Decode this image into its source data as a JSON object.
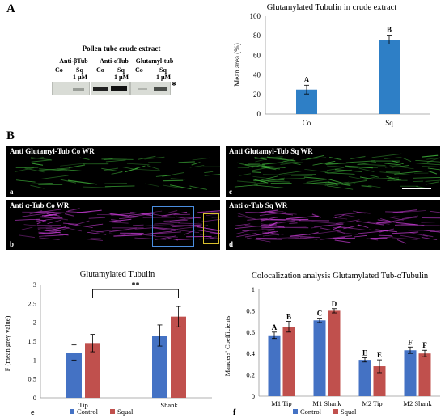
{
  "panel_a": {
    "letter": "A",
    "blot": {
      "title": "Pollen tube crude extract",
      "groups": [
        {
          "antibody": "Anti-βTub",
          "lanes": [
            {
              "label": "Co",
              "sub": ""
            },
            {
              "label": "Sq",
              "sub": "1 μM"
            }
          ]
        },
        {
          "antibody": "Anti-αTub",
          "lanes": [
            {
              "label": "Co",
              "sub": ""
            },
            {
              "label": "Sq",
              "sub": "1 μM"
            }
          ]
        },
        {
          "antibody": "Glutamyl-tub",
          "lanes": [
            {
              "label": "Co",
              "sub": ""
            },
            {
              "label": "Sq",
              "sub": "1 μM"
            }
          ]
        }
      ],
      "asterisk": "*"
    }
  },
  "panel_b": {
    "letter": "B",
    "images": [
      {
        "letter": "a",
        "title": "Anti Glutamyl-Tub Co WR",
        "color": "#3fb43a"
      },
      {
        "letter": "c",
        "title": "Anti Glutamyl-Tub Sq WR",
        "color": "#3fb43a"
      },
      {
        "letter": "b",
        "title": "Anti α-Tub  Co WR",
        "color": "#c23ad0"
      },
      {
        "letter": "d",
        "title": "Anti α-Tub  Sq WR",
        "color": "#c23ad0"
      }
    ]
  },
  "colors": {
    "control": "#4472c4",
    "squal": "#c0504d",
    "bar_a": "#2e7fc6"
  },
  "chart_data": [
    {
      "type": "bar",
      "title": "Glutamylated Tubulin in crude extract",
      "categories": [
        "Co",
        "Sq"
      ],
      "values": [
        25,
        76
      ],
      "errors": [
        4.5,
        4.5
      ],
      "letters": [
        "A",
        "B"
      ],
      "ylabel": "Mean area (%)",
      "ylim": [
        0,
        100
      ],
      "yticks": [
        "0",
        "20",
        "40",
        "60",
        "80",
        "100"
      ]
    },
    {
      "type": "bar",
      "panel_letter": "e",
      "title": "Glutamylated Tubulin",
      "categories": [
        "Tip",
        "Shank"
      ],
      "series": [
        {
          "name": "Control",
          "values": [
            1.2,
            1.65
          ],
          "errors": [
            0.2,
            0.28
          ]
        },
        {
          "name": "Squal",
          "values": [
            1.45,
            2.15
          ],
          "errors": [
            0.23,
            0.27
          ]
        }
      ],
      "ylabel": "F (mean grey value)",
      "ylim": [
        0,
        3
      ],
      "yticks": [
        "0",
        "0.5",
        "1",
        "1.5",
        "2",
        "2.5",
        "3"
      ],
      "annotation": "**",
      "legend": "bottom"
    },
    {
      "type": "bar",
      "panel_letter": "f",
      "title": "Colocalization analysis Glutamylated Tub-αTubulin",
      "categories": [
        "M1 Tip",
        "M1 Shank",
        "M2 Tip",
        "M2 Shank"
      ],
      "series": [
        {
          "name": "Control",
          "values": [
            0.57,
            0.71,
            0.34,
            0.43
          ],
          "errors": [
            0.03,
            0.02,
            0.02,
            0.03
          ],
          "letters": [
            "A",
            "C",
            "E",
            "F"
          ]
        },
        {
          "name": "Squal",
          "values": [
            0.65,
            0.8,
            0.28,
            0.4
          ],
          "errors": [
            0.05,
            0.02,
            0.06,
            0.03
          ],
          "letters": [
            "B",
            "D",
            "E",
            "F"
          ]
        }
      ],
      "ylabel": "Manders' Coefficients",
      "ylim": [
        0,
        1
      ],
      "yticks": [
        "0",
        "0.2",
        "0.4",
        "0.6",
        "0.8",
        "1"
      ],
      "legend": "bottom"
    }
  ]
}
